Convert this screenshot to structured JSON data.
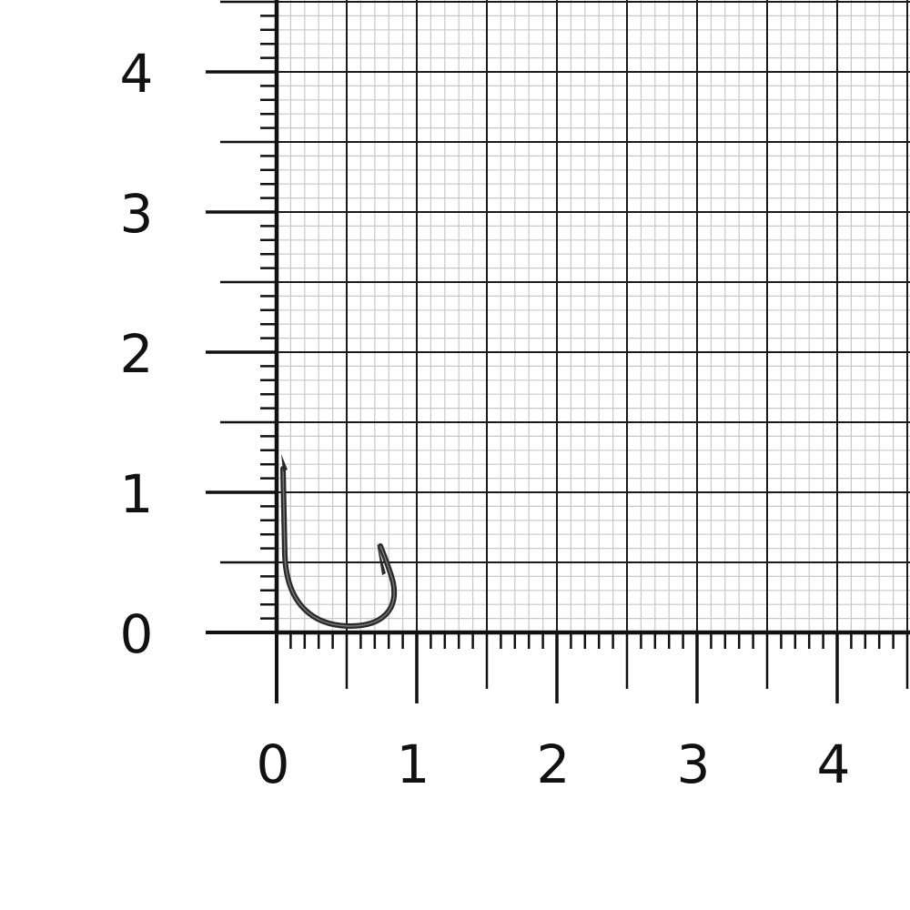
{
  "scale": {
    "x_labels": [
      "0",
      "1",
      "2",
      "3",
      "4"
    ],
    "y_labels": [
      "0",
      "1",
      "2",
      "3",
      "4"
    ],
    "major_step": 0.5,
    "minor_step": 0.1,
    "x_range": [
      0,
      4.5
    ],
    "y_range": [
      0,
      4.5
    ]
  },
  "object": {
    "icon": "fishing-hook-icon"
  },
  "colors": {
    "grid_major": "#1a1a1a",
    "grid_minor": "#c8c8c8",
    "hook": "#2a2a2a"
  }
}
